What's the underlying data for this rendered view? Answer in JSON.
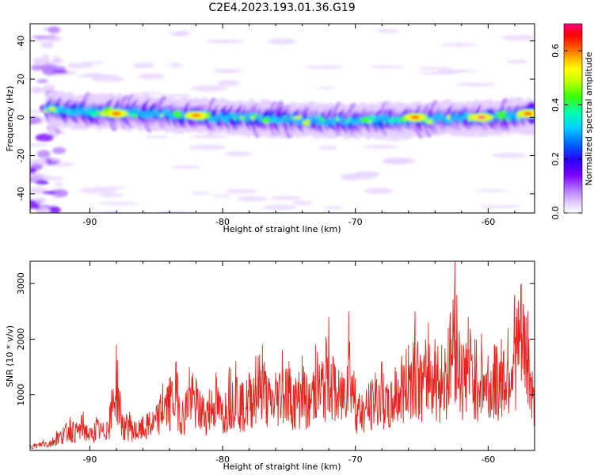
{
  "figure": {
    "title": "C2E4.2023.193.01.36.G19"
  },
  "chart_data": [
    {
      "type": "heatmap",
      "title": "C2E4.2023.193.01.36.G19",
      "xlabel": "Height of straight line (km)",
      "ylabel": "Frequency (Hz)",
      "xlim": [
        -94.5,
        -56.5
      ],
      "ylim": [
        -50,
        49
      ],
      "xticks": [
        -90,
        -80,
        -70,
        -60
      ],
      "yticks": [
        -40,
        -20,
        0,
        20,
        40
      ],
      "grid": false,
      "colorbar": {
        "label": "Normalized spectral amplitude",
        "range": [
          0,
          0.7
        ],
        "ticks": [
          0.0,
          0.2,
          0.4,
          0.6
        ],
        "colors": [
          "#ffffff",
          "#e6d0ff",
          "#b57cff",
          "#7a00ff",
          "#2a00ff",
          "#0060ff",
          "#00d0ff",
          "#00ffb0",
          "#40ff00",
          "#c8ff00",
          "#ffff00",
          "#ffb000",
          "#ff5000",
          "#ff0000",
          "#ff0080"
        ]
      },
      "ridge": {
        "description_values": "frequency centroid of the dominant band vs height",
        "x": [
          -94,
          -90,
          -85,
          -80,
          -75,
          -70,
          -65,
          -60,
          -57
        ],
        "y": [
          5,
          3,
          2,
          0,
          -1,
          -2,
          -1,
          0,
          1
        ]
      },
      "hotspots": [
        {
          "x": -88,
          "y": 2,
          "value": 0.65
        },
        {
          "x": -82,
          "y": 1,
          "value": 0.6
        },
        {
          "x": -65.5,
          "y": 0,
          "value": 0.65
        },
        {
          "x": -60.5,
          "y": 0,
          "value": 0.68
        },
        {
          "x": -57,
          "y": 2,
          "value": 0.65
        }
      ]
    },
    {
      "type": "line",
      "xlabel": "Height of straight line (km)",
      "ylabel": "SNR (10 * v/v)",
      "xlim": [
        -94.5,
        -56.5
      ],
      "ylim": [
        0,
        3400
      ],
      "xticks": [
        -90,
        -80,
        -70,
        -60
      ],
      "yticks": [
        1000,
        2000,
        3000
      ],
      "grid": false,
      "series": [
        {
          "color": "#e8231c",
          "x": [
            -94.5,
            -94,
            -93.5,
            -93,
            -92.5,
            -92,
            -91.5,
            -91,
            -90.5,
            -90,
            -89.5,
            -89,
            -88.5,
            -88,
            -87.5,
            -87,
            -86.5,
            -86,
            -85.5,
            -85,
            -84.5,
            -84,
            -83.5,
            -83,
            -82.5,
            -82,
            -81.5,
            -81,
            -80.5,
            -80,
            -79.5,
            -79,
            -78.5,
            -78,
            -77.5,
            -77,
            -76.5,
            -76,
            -75.5,
            -75,
            -74.5,
            -74,
            -73.5,
            -73,
            -72.5,
            -72,
            -71.5,
            -71,
            -70.5,
            -70,
            -69.5,
            -69,
            -68.5,
            -68,
            -67.5,
            -67,
            -66.5,
            -66,
            -65.5,
            -65,
            -64.5,
            -64,
            -63.5,
            -63,
            -62.5,
            -62,
            -61.5,
            -61,
            -60.5,
            -60,
            -59.5,
            -59,
            -58.5,
            -58,
            -57.5,
            -57,
            -56.5
          ],
          "y": [
            150,
            120,
            200,
            180,
            350,
            420,
            600,
            500,
            700,
            400,
            600,
            500,
            800,
            1900,
            600,
            700,
            500,
            600,
            700,
            800,
            1200,
            1300,
            1600,
            900,
            1500,
            1300,
            1000,
            1100,
            1400,
            900,
            1500,
            1600,
            1200,
            1400,
            1700,
            1900,
            1300,
            1400,
            1800,
            1600,
            1300,
            1700,
            1200,
            1900,
            1600,
            2400,
            1500,
            1400,
            2500,
            1300,
            1000,
            1200,
            1400,
            1600,
            1100,
            1500,
            1700,
            1900,
            2500,
            1600,
            2300,
            2000,
            1900,
            2200,
            3400,
            1900,
            2400,
            2000,
            2100,
            1700,
            1900,
            2000,
            2200,
            2800,
            3000,
            2500,
            1000
          ]
        }
      ]
    }
  ]
}
